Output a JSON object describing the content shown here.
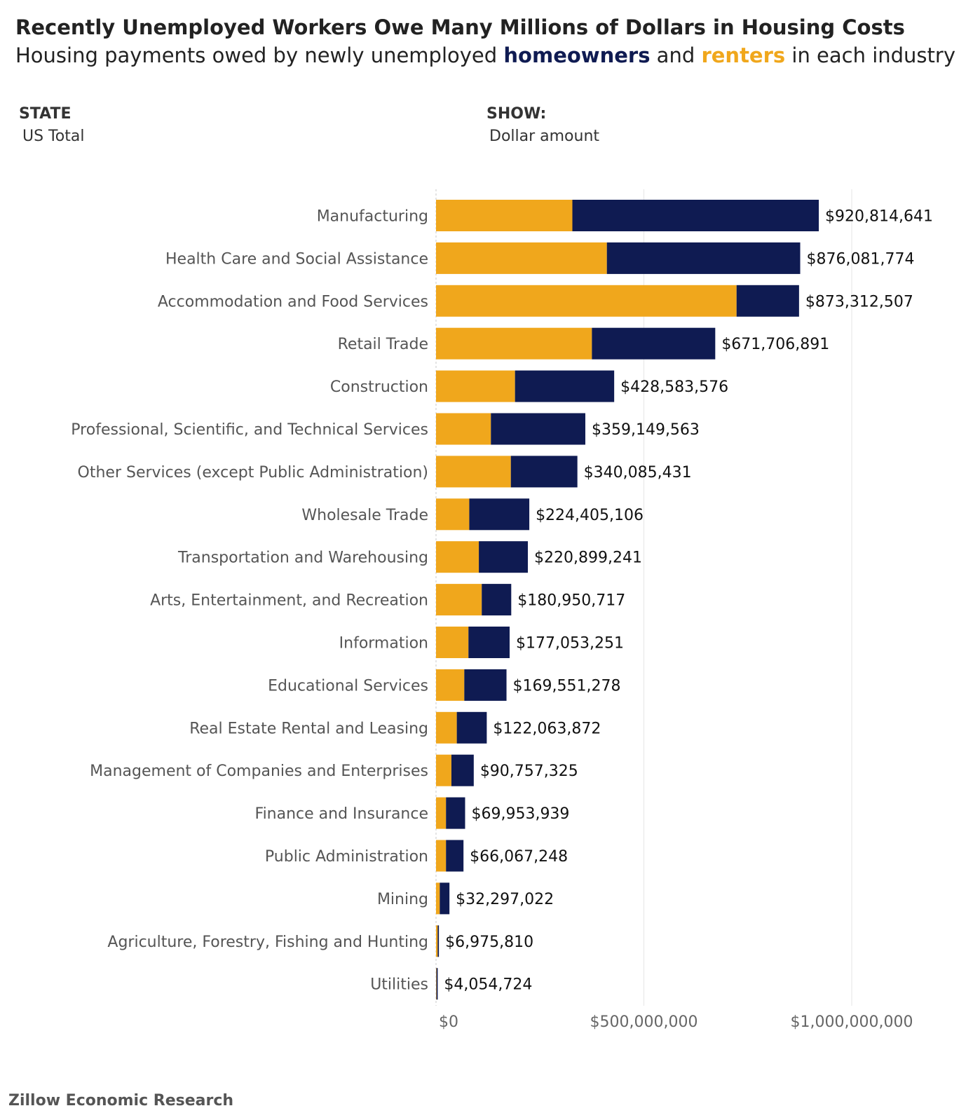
{
  "title": "Recently Unemployed Workers Owe Many Millions of Dollars in Housing Costs",
  "subtitle": {
    "prefix": "Housing payments owed by newly unemployed ",
    "homeowners": "homeowners",
    "middle": " and ",
    "renters": "renters",
    "suffix": " in each industry"
  },
  "filters": {
    "state_label": "STATE",
    "state_value": "US Total",
    "show_label": "SHOW:",
    "show_value": "Dollar amount"
  },
  "footer": "Zillow Economic Research",
  "colors": {
    "homeowners": "#0f1b52",
    "renters": "#f0a71c"
  },
  "chart_data": {
    "type": "bar",
    "orientation": "horizontal",
    "stacked": true,
    "categories": [
      "Manufacturing",
      "Health Care and Social Assistance",
      "Accommodation and Food Services",
      "Retail Trade",
      "Construction",
      "Professional, Scientific, and Technical Services",
      "Other Services (except Public Administration)",
      "Wholesale Trade",
      "Transportation and Warehousing",
      "Arts, Entertainment, and Recreation",
      "Information",
      "Educational Services",
      "Real Estate Rental and Leasing",
      "Management of Companies and Enterprises",
      "Finance and Insurance",
      "Public Administration",
      "Mining",
      "Agriculture, Forestry, Fishing and Hunting",
      "Utilities"
    ],
    "series": [
      {
        "name": "renters",
        "values": [
          328000000,
          411000000,
          723000000,
          375000000,
          190000000,
          132000000,
          180000000,
          80000000,
          103000000,
          110000000,
          78000000,
          68000000,
          50000000,
          37000000,
          24000000,
          24000000,
          9000000,
          4000000,
          1000000
        ]
      },
      {
        "name": "homeowners",
        "values": [
          592814641,
          465081774,
          150312507,
          296706891,
          238583576,
          227149563,
          160085431,
          144405106,
          117899241,
          70950717,
          99053251,
          101551278,
          72063872,
          53757325,
          45953939,
          42067248,
          23297022,
          2975810,
          3054724
        ]
      }
    ],
    "totals": [
      920814641,
      876081774,
      873312507,
      671706891,
      428583576,
      359149563,
      340085431,
      224405106,
      220899241,
      180950717,
      177053251,
      169551278,
      122063872,
      90757325,
      69953939,
      66067248,
      32297022,
      6975810,
      4054724
    ],
    "total_labels": [
      "$920,814,641",
      "$876,081,774",
      "$873,312,507",
      "$671,706,891",
      "$428,583,576",
      "$359,149,563",
      "$340,085,431",
      "$224,405,106",
      "$220,899,241",
      "$180,950,717",
      "$177,053,251",
      "$169,551,278",
      "$122,063,872",
      "$90,757,325",
      "$69,953,939",
      "$66,067,248",
      "$32,297,022",
      "$6,975,810",
      "$4,054,724"
    ],
    "x_ticks": [
      0,
      500000000,
      1000000000
    ],
    "x_tick_labels": [
      "$0",
      "$500,000,000",
      "$1,000,000,000"
    ],
    "xlim": [
      0,
      1150000000
    ],
    "grid": true
  }
}
